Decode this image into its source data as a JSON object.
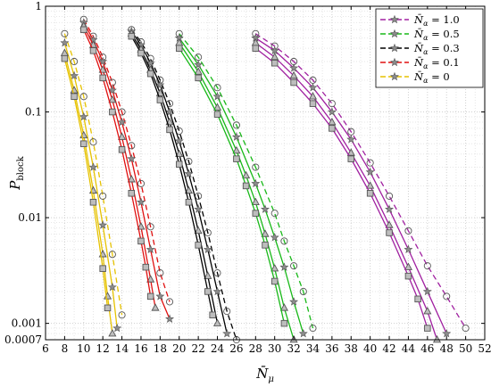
{
  "chart_data": {
    "type": "line",
    "xlabel": "N̄",
    "xlabel_sub": "μ",
    "ylabel": "P",
    "ylabel_sub": "block",
    "x_range": [
      6,
      52
    ],
    "y_range": [
      0.0007,
      1
    ],
    "y_scale": "log",
    "grid": true,
    "legend_placement": "top-right",
    "x_ticks": [
      "6",
      "8",
      "10",
      "12",
      "14",
      "16",
      "18",
      "20",
      "22",
      "24",
      "26",
      "28",
      "30",
      "32",
      "34",
      "36",
      "38",
      "40",
      "42",
      "44",
      "46",
      "48",
      "50",
      "52"
    ],
    "y_ticks": [
      {
        "value": 1,
        "label": "1"
      },
      {
        "value": 0.1,
        "label": "0.1"
      },
      {
        "value": 0.01,
        "label": "0.01"
      },
      {
        "value": 0.001,
        "label": "0.001"
      },
      {
        "value": 0.0007,
        "label": "0.0007"
      }
    ],
    "series": [
      {
        "name": "N̄",
        "name_sub": "α",
        "name_suffix": " = 1.0",
        "color": "#a020a0",
        "curves": [
          {
            "dash": "6,4",
            "marker": "circle",
            "points": [
              [
                28,
                0.55
              ],
              [
                30,
                0.42
              ],
              [
                32,
                0.3
              ],
              [
                34,
                0.2
              ],
              [
                36,
                0.12
              ],
              [
                38,
                0.065
              ],
              [
                40,
                0.033
              ],
              [
                42,
                0.016
              ],
              [
                44,
                0.0075
              ],
              [
                46,
                0.0035
              ],
              [
                48,
                0.0018
              ],
              [
                50,
                0.0009
              ]
            ]
          },
          {
            "dash": "",
            "marker": "star",
            "points": [
              [
                28,
                0.5
              ],
              [
                30,
                0.38
              ],
              [
                32,
                0.26
              ],
              [
                34,
                0.17
              ],
              [
                36,
                0.1
              ],
              [
                38,
                0.055
              ],
              [
                40,
                0.027
              ],
              [
                42,
                0.012
              ],
              [
                44,
                0.005
              ],
              [
                46,
                0.002
              ],
              [
                48,
                0.0008
              ]
            ]
          },
          {
            "dash": "",
            "marker": "triangle",
            "points": [
              [
                28,
                0.45
              ],
              [
                30,
                0.33
              ],
              [
                32,
                0.22
              ],
              [
                34,
                0.14
              ],
              [
                36,
                0.08
              ],
              [
                38,
                0.041
              ],
              [
                40,
                0.02
              ],
              [
                42,
                0.0085
              ],
              [
                44,
                0.0034
              ],
              [
                46,
                0.0013
              ],
              [
                47,
                0.0007
              ]
            ]
          },
          {
            "dash": "",
            "marker": "square",
            "points": [
              [
                28,
                0.4
              ],
              [
                30,
                0.29
              ],
              [
                32,
                0.19
              ],
              [
                34,
                0.12
              ],
              [
                36,
                0.07
              ],
              [
                38,
                0.036
              ],
              [
                40,
                0.017
              ],
              [
                42,
                0.0072
              ],
              [
                44,
                0.0028
              ],
              [
                45,
                0.0017
              ],
              [
                46,
                0.0009
              ]
            ]
          }
        ]
      },
      {
        "name": "N̄",
        "name_sub": "α",
        "name_suffix": " = 0.5",
        "color": "#18b818",
        "curves": [
          {
            "dash": "6,4",
            "marker": "circle",
            "points": [
              [
                20,
                0.55
              ],
              [
                22,
                0.33
              ],
              [
                24,
                0.17
              ],
              [
                26,
                0.075
              ],
              [
                28,
                0.03
              ],
              [
                30,
                0.011
              ],
              [
                31,
                0.006
              ],
              [
                32,
                0.0035
              ],
              [
                33,
                0.002
              ],
              [
                34,
                0.0009
              ]
            ]
          },
          {
            "dash": "",
            "marker": "star",
            "points": [
              [
                20,
                0.5
              ],
              [
                22,
                0.28
              ],
              [
                24,
                0.14
              ],
              [
                26,
                0.058
              ],
              [
                28,
                0.021
              ],
              [
                29,
                0.012
              ],
              [
                30,
                0.0065
              ],
              [
                31,
                0.0034
              ],
              [
                32,
                0.0016
              ],
              [
                33,
                0.0008
              ]
            ]
          },
          {
            "dash": "",
            "marker": "triangle",
            "points": [
              [
                20,
                0.45
              ],
              [
                22,
                0.24
              ],
              [
                24,
                0.11
              ],
              [
                26,
                0.043
              ],
              [
                27,
                0.025
              ],
              [
                28,
                0.014
              ],
              [
                29,
                0.007
              ],
              [
                30,
                0.0033
              ],
              [
                31,
                0.0014
              ],
              [
                32,
                0.0007
              ]
            ]
          },
          {
            "dash": "",
            "marker": "square",
            "points": [
              [
                20,
                0.4
              ],
              [
                22,
                0.21
              ],
              [
                24,
                0.095
              ],
              [
                26,
                0.036
              ],
              [
                27,
                0.02
              ],
              [
                28,
                0.011
              ],
              [
                29,
                0.0055
              ],
              [
                30,
                0.0025
              ],
              [
                31,
                0.001
              ]
            ]
          }
        ]
      },
      {
        "name": "N̄",
        "name_sub": "α",
        "name_suffix": " = 0.3",
        "color": "#000000",
        "curves": [
          {
            "dash": "6,4",
            "marker": "circle",
            "points": [
              [
                15,
                0.6
              ],
              [
                16,
                0.46
              ],
              [
                17,
                0.32
              ],
              [
                18,
                0.2
              ],
              [
                19,
                0.12
              ],
              [
                20,
                0.066
              ],
              [
                21,
                0.034
              ],
              [
                22,
                0.016
              ],
              [
                23,
                0.0072
              ],
              [
                24,
                0.003
              ],
              [
                25,
                0.0013
              ],
              [
                26,
                0.0007
              ]
            ]
          },
          {
            "dash": "",
            "marker": "star",
            "points": [
              [
                15,
                0.58
              ],
              [
                16,
                0.43
              ],
              [
                17,
                0.29
              ],
              [
                18,
                0.18
              ],
              [
                19,
                0.1
              ],
              [
                20,
                0.053
              ],
              [
                21,
                0.026
              ],
              [
                22,
                0.012
              ],
              [
                23,
                0.005
              ],
              [
                24,
                0.002
              ],
              [
                25,
                0.0008
              ]
            ]
          },
          {
            "dash": "",
            "marker": "triangle",
            "points": [
              [
                15,
                0.55
              ],
              [
                16,
                0.39
              ],
              [
                17,
                0.25
              ],
              [
                18,
                0.15
              ],
              [
                19,
                0.08
              ],
              [
                20,
                0.04
              ],
              [
                21,
                0.018
              ],
              [
                22,
                0.0075
              ],
              [
                23,
                0.0028
              ],
              [
                24,
                0.001
              ]
            ]
          },
          {
            "dash": "",
            "marker": "square",
            "points": [
              [
                15,
                0.52
              ],
              [
                16,
                0.36
              ],
              [
                17,
                0.23
              ],
              [
                18,
                0.13
              ],
              [
                19,
                0.068
              ],
              [
                20,
                0.032
              ],
              [
                21,
                0.014
              ],
              [
                22,
                0.0055
              ],
              [
                23,
                0.002
              ],
              [
                23.5,
                0.0012
              ]
            ]
          }
        ]
      },
      {
        "name": "N̄",
        "name_sub": "α",
        "name_suffix": " = 0.1",
        "color": "#e01010",
        "curves": [
          {
            "dash": "6,4",
            "marker": "circle",
            "points": [
              [
                10,
                0.75
              ],
              [
                11,
                0.52
              ],
              [
                12,
                0.33
              ],
              [
                13,
                0.19
              ],
              [
                14,
                0.1
              ],
              [
                15,
                0.048
              ],
              [
                16,
                0.021
              ],
              [
                17,
                0.0082
              ],
              [
                18,
                0.003
              ],
              [
                19,
                0.0016
              ]
            ]
          },
          {
            "dash": "",
            "marker": "star",
            "points": [
              [
                10,
                0.7
              ],
              [
                11,
                0.48
              ],
              [
                12,
                0.3
              ],
              [
                13,
                0.16
              ],
              [
                14,
                0.08
              ],
              [
                15,
                0.036
              ],
              [
                16,
                0.014
              ],
              [
                17,
                0.005
              ],
              [
                18,
                0.0018
              ],
              [
                19,
                0.0011
              ]
            ]
          },
          {
            "dash": "",
            "marker": "triangle",
            "points": [
              [
                10,
                0.65
              ],
              [
                11,
                0.43
              ],
              [
                12,
                0.25
              ],
              [
                13,
                0.13
              ],
              [
                14,
                0.058
              ],
              [
                15,
                0.023
              ],
              [
                16,
                0.0082
              ],
              [
                17,
                0.0026
              ],
              [
                17.5,
                0.0014
              ]
            ]
          },
          {
            "dash": "",
            "marker": "square",
            "points": [
              [
                10,
                0.6
              ],
              [
                11,
                0.38
              ],
              [
                12,
                0.21
              ],
              [
                13,
                0.1
              ],
              [
                14,
                0.044
              ],
              [
                15,
                0.017
              ],
              [
                16,
                0.006
              ],
              [
                16.5,
                0.0034
              ],
              [
                17,
                0.0018
              ]
            ]
          }
        ]
      },
      {
        "name": "N̄",
        "name_sub": "α",
        "name_suffix": " = 0",
        "color": "#e6c200",
        "curves": [
          {
            "dash": "6,4",
            "marker": "circle",
            "points": [
              [
                8,
                0.55
              ],
              [
                9,
                0.3
              ],
              [
                10,
                0.14
              ],
              [
                11,
                0.052
              ],
              [
                12,
                0.016
              ],
              [
                13,
                0.0045
              ],
              [
                14,
                0.0012
              ]
            ]
          },
          {
            "dash": "",
            "marker": "star",
            "points": [
              [
                8,
                0.45
              ],
              [
                9,
                0.22
              ],
              [
                10,
                0.09
              ],
              [
                11,
                0.03
              ],
              [
                12,
                0.0085
              ],
              [
                13,
                0.0022
              ],
              [
                13.5,
                0.0009
              ]
            ]
          },
          {
            "dash": "",
            "marker": "triangle",
            "points": [
              [
                8,
                0.36
              ],
              [
                9,
                0.16
              ],
              [
                10,
                0.06
              ],
              [
                11,
                0.018
              ],
              [
                12,
                0.0045
              ],
              [
                12.5,
                0.0018
              ],
              [
                13,
                0.0008
              ]
            ]
          },
          {
            "dash": "",
            "marker": "square",
            "points": [
              [
                8,
                0.32
              ],
              [
                9,
                0.14
              ],
              [
                10,
                0.05
              ],
              [
                11,
                0.014
              ],
              [
                12,
                0.0033
              ],
              [
                12.5,
                0.0014
              ]
            ]
          }
        ]
      }
    ]
  }
}
